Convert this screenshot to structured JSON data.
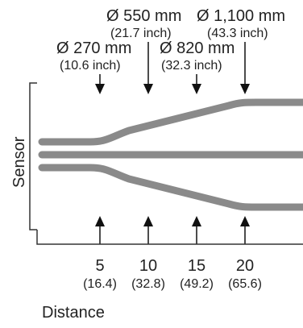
{
  "diameters": [
    {
      "main": "Ø 550 mm",
      "sub": "(21.7 inch)"
    },
    {
      "main": "Ø 1,100 mm",
      "sub": "(43.3 inch)"
    },
    {
      "main": "Ø 270 mm",
      "sub": "(10.6 inch)"
    },
    {
      "main": "Ø 820 mm",
      "sub": "(32.3 inch)"
    }
  ],
  "ticks": [
    {
      "main": "5",
      "sub": "(16.4)"
    },
    {
      "main": "10",
      "sub": "(32.8)"
    },
    {
      "main": "15",
      "sub": "(49.2)"
    },
    {
      "main": "20",
      "sub": "(65.6)"
    }
  ],
  "labels": {
    "sensor": "Sensor",
    "distance": "Distance"
  },
  "colors": {
    "beam": "#8a8a8a",
    "text": "#222222",
    "arrow": "#111111"
  }
}
